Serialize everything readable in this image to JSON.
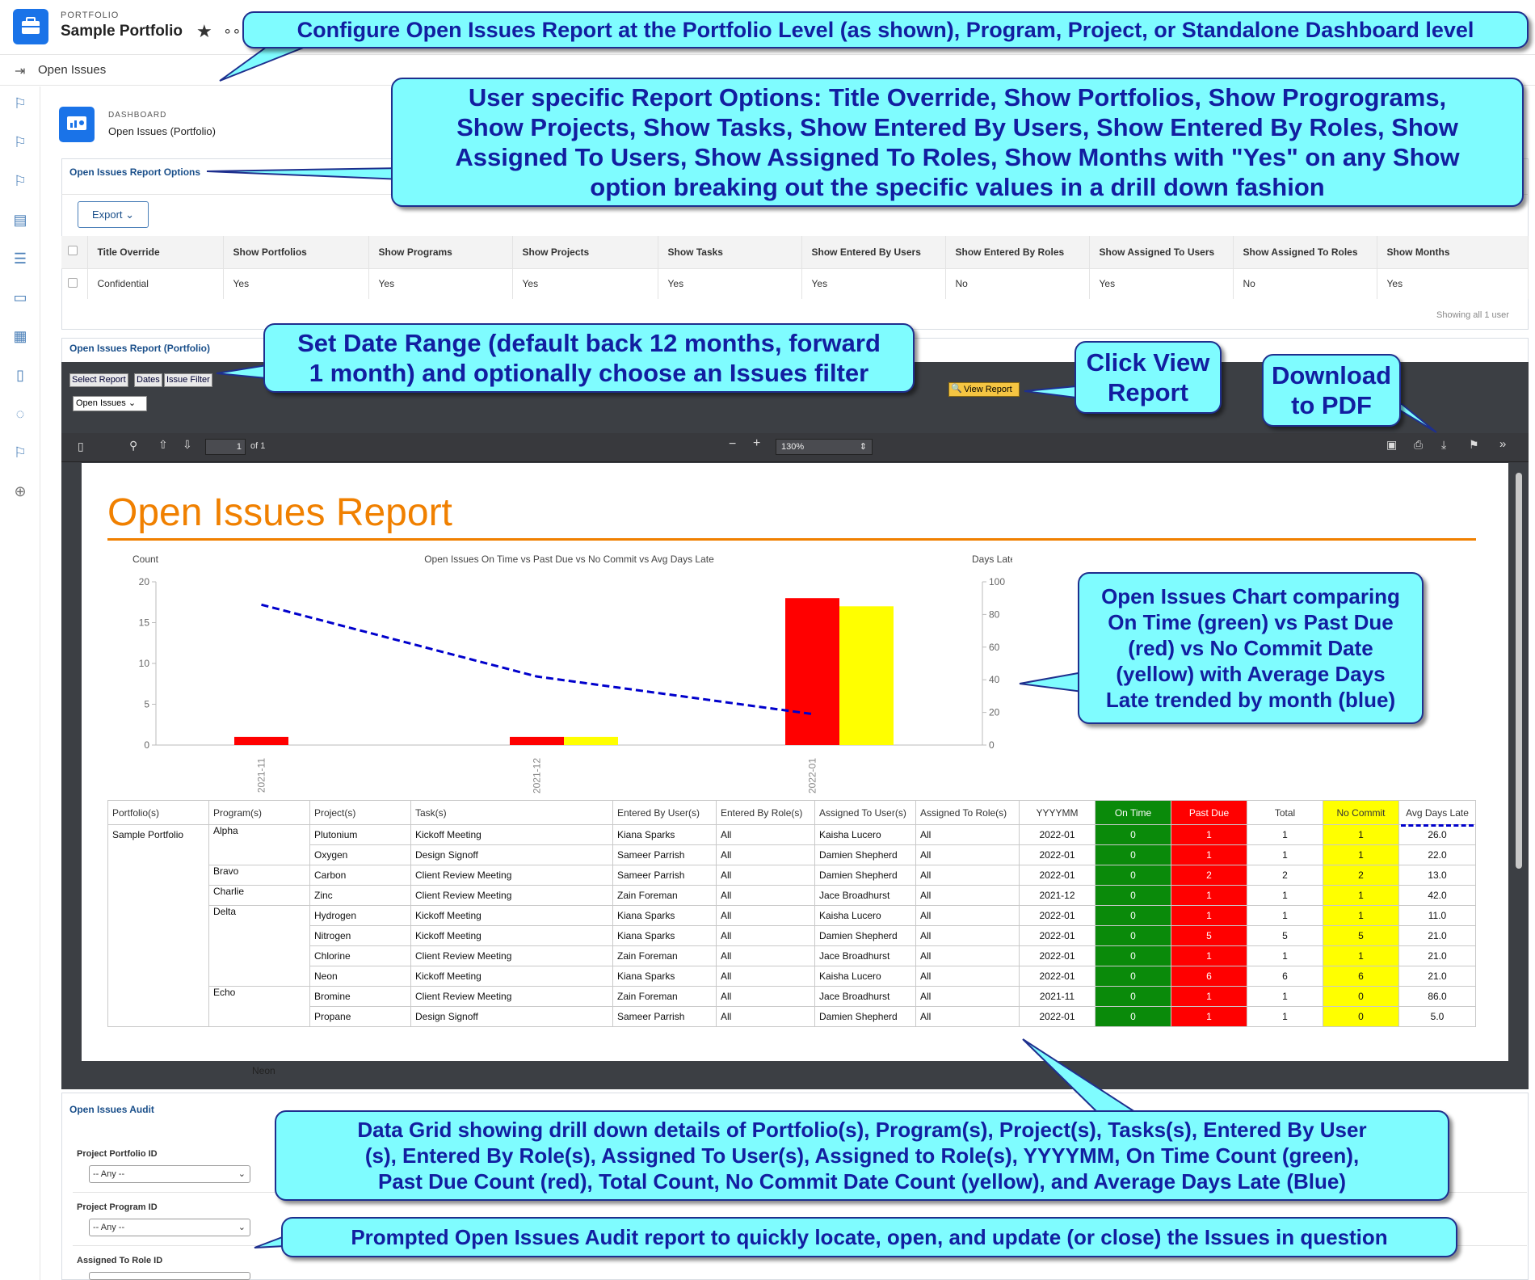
{
  "header": {
    "section_label": "PORTFOLIO",
    "title": "Sample Portfolio",
    "sub_nav_label": "Open Issues"
  },
  "dashboard": {
    "label": "DASHBOARD",
    "title": "Open Issues (Portfolio)"
  },
  "options_panel": {
    "title": "Open Issues Report Options",
    "export_label": "Export",
    "columns": [
      "Title Override",
      "Show Portfolios",
      "Show Programs",
      "Show Projects",
      "Show Tasks",
      "Show Entered By Users",
      "Show Entered By Roles",
      "Show Assigned To Users",
      "Show Assigned To Roles",
      "Show Months"
    ],
    "row": [
      "Confidential",
      "Yes",
      "Yes",
      "Yes",
      "Yes",
      "Yes",
      "No",
      "Yes",
      "No",
      "Yes"
    ],
    "footer": "Showing all 1 user"
  },
  "report_panel": {
    "title": "Open Issues Report (Portfolio)",
    "tabs": [
      "Select Report",
      "Dates",
      "Issue Filter"
    ],
    "filter_value": "Open Issues",
    "view_button": "View Report",
    "pdf": {
      "page": "1",
      "of": "of 1",
      "zoom": "130%"
    }
  },
  "report": {
    "title": "Open Issues Report",
    "neon_label": "Neon"
  },
  "chart_data": {
    "type": "bar",
    "title": "Open Issues On Time vs Past Due vs No Commit vs Avg Days Late",
    "ylabel": "Count",
    "y2label": "Days Late",
    "categories": [
      "2021-11",
      "2021-12",
      "2022-01"
    ],
    "ylim": [
      0,
      20
    ],
    "y2lim": [
      0,
      100
    ],
    "yticks": [
      "0",
      "5",
      "10",
      "15",
      "20"
    ],
    "y2ticks": [
      "0",
      "20",
      "40",
      "60",
      "80",
      "100"
    ],
    "series": [
      {
        "name": "On Time",
        "color": "#008000",
        "values": [
          0,
          0,
          0
        ]
      },
      {
        "name": "Past Due",
        "color": "#ff0000",
        "values": [
          1,
          1,
          18
        ]
      },
      {
        "name": "No Commit",
        "color": "#ffff00",
        "values": [
          0,
          1,
          17
        ]
      },
      {
        "name": "Avg Days Late",
        "color": "#0000cc",
        "axis": "right",
        "style": "dashed-line",
        "values": [
          86,
          42,
          19
        ]
      }
    ]
  },
  "grid": {
    "headers": [
      "Portfolio(s)",
      "Program(s)",
      "Project(s)",
      "Task(s)",
      "Entered By User(s)",
      "Entered By Role(s)",
      "Assigned To User(s)",
      "Assigned To Role(s)",
      "YYYYMM",
      "On Time",
      "Past Due",
      "Total",
      "No Commit",
      "Avg Days Late"
    ],
    "portfolio": "Sample Portfolio",
    "rows": [
      {
        "program": "Alpha",
        "project": "Plutonium",
        "task": "Kickoff Meeting",
        "entered_user": "Kiana Sparks",
        "entered_role": "All",
        "assigned_user": "Kaisha Lucero",
        "assigned_role": "All",
        "month": "2022-01",
        "on_time": "0",
        "past_due": "1",
        "total": "1",
        "no_commit": "1",
        "avg": "26.0"
      },
      {
        "program": "",
        "project": "Oxygen",
        "task": "Design Signoff",
        "entered_user": "Sameer Parrish",
        "entered_role": "All",
        "assigned_user": "Damien Shepherd",
        "assigned_role": "All",
        "month": "2022-01",
        "on_time": "0",
        "past_due": "1",
        "total": "1",
        "no_commit": "1",
        "avg": "22.0"
      },
      {
        "program": "Bravo",
        "project": "Carbon",
        "task": "Client Review Meeting",
        "entered_user": "Sameer Parrish",
        "entered_role": "All",
        "assigned_user": "Damien Shepherd",
        "assigned_role": "All",
        "month": "2022-01",
        "on_time": "0",
        "past_due": "2",
        "total": "2",
        "no_commit": "2",
        "avg": "13.0"
      },
      {
        "program": "Charlie",
        "project": "Zinc",
        "task": "Client Review Meeting",
        "entered_user": "Zain Foreman",
        "entered_role": "All",
        "assigned_user": "Jace Broadhurst",
        "assigned_role": "All",
        "month": "2021-12",
        "on_time": "0",
        "past_due": "1",
        "total": "1",
        "no_commit": "1",
        "avg": "42.0"
      },
      {
        "program": "Delta",
        "project": "Hydrogen",
        "task": "Kickoff Meeting",
        "entered_user": "Kiana Sparks",
        "entered_role": "All",
        "assigned_user": "Kaisha Lucero",
        "assigned_role": "All",
        "month": "2022-01",
        "on_time": "0",
        "past_due": "1",
        "total": "1",
        "no_commit": "1",
        "avg": "11.0"
      },
      {
        "program": "",
        "project": "Nitrogen",
        "task": "Kickoff Meeting",
        "entered_user": "Kiana Sparks",
        "entered_role": "All",
        "assigned_user": "Damien Shepherd",
        "assigned_role": "All",
        "month": "2022-01",
        "on_time": "0",
        "past_due": "5",
        "total": "5",
        "no_commit": "5",
        "avg": "21.0"
      },
      {
        "program": "",
        "project": "Chlorine",
        "task": "Client Review Meeting",
        "entered_user": "Zain Foreman",
        "entered_role": "All",
        "assigned_user": "Jace Broadhurst",
        "assigned_role": "All",
        "month": "2022-01",
        "on_time": "0",
        "past_due": "1",
        "total": "1",
        "no_commit": "1",
        "avg": "21.0"
      },
      {
        "program": "",
        "project": "Neon",
        "task": "Kickoff Meeting",
        "entered_user": "Kiana Sparks",
        "entered_role": "All",
        "assigned_user": "Kaisha Lucero",
        "assigned_role": "All",
        "month": "2022-01",
        "on_time": "0",
        "past_due": "6",
        "total": "6",
        "no_commit": "6",
        "avg": "21.0"
      },
      {
        "program": "Echo",
        "project": "Bromine",
        "task": "Client Review Meeting",
        "entered_user": "Zain Foreman",
        "entered_role": "All",
        "assigned_user": "Jace Broadhurst",
        "assigned_role": "All",
        "month": "2021-11",
        "on_time": "0",
        "past_due": "1",
        "total": "1",
        "no_commit": "0",
        "avg": "86.0"
      },
      {
        "program": "",
        "project": "Propane",
        "task": "Design Signoff",
        "entered_user": "Sameer Parrish",
        "entered_role": "All",
        "assigned_user": "Damien Shepherd",
        "assigned_role": "All",
        "month": "2022-01",
        "on_time": "0",
        "past_due": "1",
        "total": "1",
        "no_commit": "0",
        "avg": "5.0"
      }
    ]
  },
  "audit": {
    "title": "Open Issues Audit",
    "fields": [
      {
        "label": "Project Portfolio ID",
        "value": "-- Any --"
      },
      {
        "label": "Project Program ID",
        "value": "-- Any --"
      },
      {
        "label": "Assigned To Role ID",
        "value": ""
      }
    ]
  },
  "callouts": {
    "configure": "Configure Open Issues Report at the Portfolio Level (as shown), Program, Project, or Standalone Dashboard level",
    "options": [
      "User specific Report Options: Title Override, Show Portfolios, Show Progrograms,",
      "Show Projects, Show Tasks, Show Entered By Users, Show Entered By Roles, Show",
      "Assigned To Users, Show Assigned To Roles, Show Months with \"Yes\" on any Show",
      "option breaking out the specific values in a drill down fashion"
    ],
    "date_range": [
      "Set Date Range (default back 12 months, forward",
      "1 month) and optionally choose an Issues filter"
    ],
    "view": [
      "Click View",
      "Report"
    ],
    "download": [
      "Download",
      "to PDF"
    ],
    "chart": [
      "Open Issues Chart comparing",
      "On Time (green) vs Past Due",
      "(red) vs No Commit Date",
      "(yellow) with Average Days",
      "Late trended by month (blue)"
    ],
    "grid": [
      "Data Grid showing drill down details of Portfolio(s), Program(s), Project(s), Tasks(s), Entered By User",
      "(s), Entered By Role(s), Assigned To User(s), Assigned to Role(s), YYYYMM, On Time Count (green),",
      "Past Due Count (red), Total Count, No Commit Date Count (yellow), and Average Days Late (Blue)"
    ],
    "audit": "Prompted Open Issues Audit report to quickly locate, open, and update (or close) the Issues in question"
  }
}
